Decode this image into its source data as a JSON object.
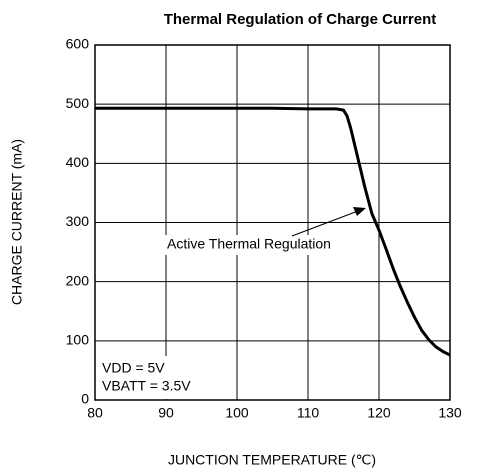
{
  "chart_data": {
    "type": "line",
    "title": "Thermal Regulation of Charge Current",
    "x_label": "JUNCTION TEMPERATURE (℃)",
    "y_label": "CHARGE CURRENT (mA)",
    "x": [
      80,
      85,
      90,
      95,
      100,
      105,
      110,
      114,
      115,
      115.5,
      116,
      116.5,
      117,
      118,
      119,
      120,
      121,
      122,
      123,
      124,
      125,
      126,
      127,
      128,
      129,
      130
    ],
    "series": [
      {
        "name": "Charge Current",
        "color": "#000000",
        "values": [
          493,
          493,
          493,
          493,
          493,
          493,
          492,
          492,
          490,
          480,
          460,
          435,
          410,
          360,
          315,
          287,
          255,
          222,
          192,
          165,
          140,
          118,
          102,
          90,
          82,
          76
        ]
      }
    ],
    "xlim": [
      80,
      130
    ],
    "ylim": [
      0,
      600
    ],
    "xticks": [
      80,
      90,
      100,
      110,
      120,
      130
    ],
    "yticks": [
      0,
      100,
      200,
      300,
      400,
      500,
      600
    ],
    "grid": true,
    "annotations": [
      "Active Thermal Regulation",
      "VDD = 5V",
      "VBATT = 3.5V"
    ]
  }
}
